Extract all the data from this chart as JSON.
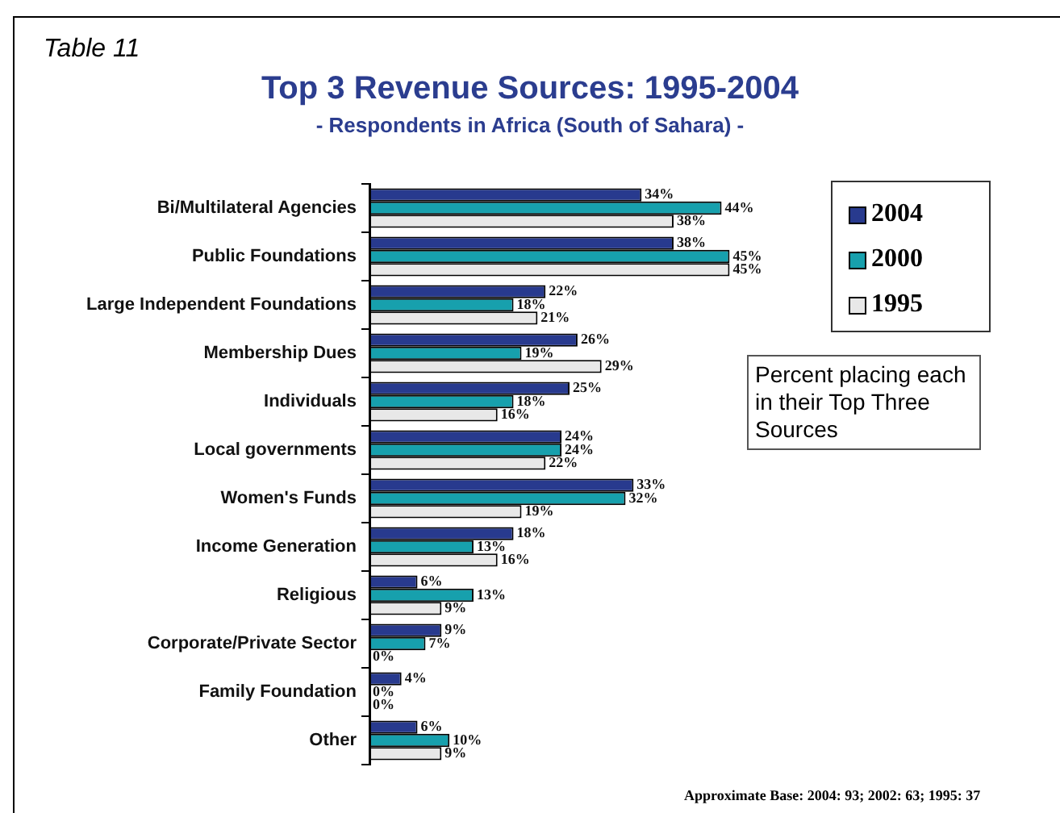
{
  "chart_data": {
    "type": "bar",
    "orientation": "horizontal",
    "title": "Top 3 Revenue Sources: 1995-2004",
    "subtitle": "- Respondents in Africa (South of Sahara) -",
    "categories": [
      "Bi/Multilateral Agencies",
      "Public Foundations",
      "Large Independent Foundations",
      "Membership Dues",
      "Individuals",
      "Local governments",
      "Women's Funds",
      "Income Generation",
      "Religious",
      "Corporate/Private Sector",
      "Family Foundation",
      "Other"
    ],
    "series": [
      {
        "name": "2004",
        "color": "#283a8e",
        "values": [
          34,
          38,
          22,
          26,
          25,
          24,
          33,
          18,
          6,
          9,
          4,
          6
        ],
        "value_labels": [
          "34%",
          "38%",
          "22%",
          "26%",
          "25%",
          "24%",
          "33%",
          "18%",
          "6%",
          "9%",
          "4%",
          "6%"
        ]
      },
      {
        "name": "2000",
        "color": "#17a0ad",
        "values": [
          44,
          45,
          18,
          19,
          18,
          24,
          32,
          13,
          13,
          7,
          0,
          10
        ],
        "value_labels": [
          "44%",
          "45%",
          "18%",
          "19%",
          "18%",
          "24%",
          "32%",
          "13%",
          "13%",
          "7%",
          "0%",
          "10%"
        ]
      },
      {
        "name": "1995",
        "color": "#e8e8e8",
        "values": [
          38,
          45,
          21,
          29,
          16,
          22,
          19,
          16,
          9,
          0,
          0,
          9
        ],
        "value_labels": [
          "38%",
          "45%",
          "21%",
          "29%",
          "16%",
          "22%",
          "19%",
          "16%",
          "9%",
          "0%",
          "0%",
          "9%"
        ]
      }
    ],
    "tick_labels": "y",
    "legend": "top right",
    "annotations": [
      "Table 11",
      "Percent placing each in their Top Three Sources",
      "Approximate Base: 2004: 93; 2002: 63; 1995: 37"
    ]
  }
}
